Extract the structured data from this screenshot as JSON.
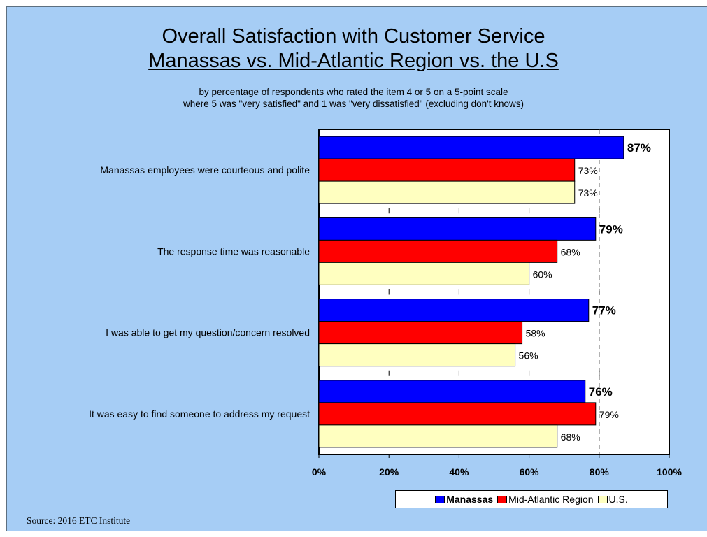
{
  "header": {
    "title_line1": "Overall Satisfaction with Customer Service",
    "title_line2": "Manassas vs. Mid-Atlantic Region vs. the U.S",
    "subtitle_line1": "by percentage of respondents who rated the item 4 or 5 on a 5-point scale",
    "subtitle_line2_main": "where 5 was \"very satisfied\" and 1 was \"very dissatisfied\" ",
    "subtitle_line2_underlined": "(excluding don't knows)"
  },
  "footer": {
    "source": "Source:  2016 ETC Institute"
  },
  "colors": {
    "background": "#a6cdf5",
    "manassas": "#0000ff",
    "mid_atlantic": "#ff0000",
    "us": "#ffffc0"
  },
  "chart_data": {
    "type": "bar",
    "orientation": "horizontal",
    "categories": [
      "Manassas employees were courteous and polite",
      "The response time was reasonable",
      "I was able to get my question/concern resolved",
      "It was easy to find someone to address my request"
    ],
    "series": [
      {
        "name": "Manassas",
        "values": [
          87,
          79,
          77,
          76
        ],
        "labels": [
          "87%",
          "79%",
          "77%",
          "76%"
        ],
        "bold": true,
        "color": "#0000ff"
      },
      {
        "name": "Mid-Atlantic Region",
        "values": [
          73,
          68,
          58,
          79
        ],
        "labels": [
          "73%",
          "68%",
          "58%",
          "79%"
        ],
        "bold": false,
        "color": "#ff0000"
      },
      {
        "name": "U.S.",
        "values": [
          73,
          60,
          56,
          68
        ],
        "labels": [
          "73%",
          "60%",
          "56%",
          "68%"
        ],
        "bold": false,
        "color": "#ffffc0"
      }
    ],
    "xlim": [
      0,
      100
    ],
    "xticks": [
      "0%",
      "20%",
      "40%",
      "60%",
      "80%",
      "100%"
    ],
    "gridline": "dashed at 80%",
    "legend": "bottom-right"
  }
}
